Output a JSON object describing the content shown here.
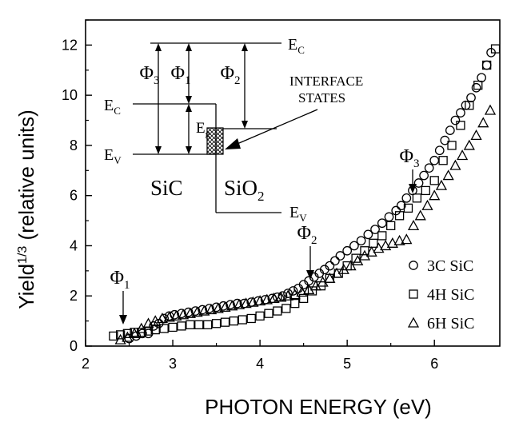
{
  "chart_data": {
    "type": "scatter",
    "xlabel": "PHOTON ENERGY (eV)",
    "ylabel": "Yield",
    "ylabel_sup": "1/3",
    "ylabel_suffix": " (relative units)",
    "xlim": [
      2.0,
      6.75
    ],
    "ylim": [
      0,
      13
    ],
    "xticks": [
      "2",
      "3",
      "4",
      "5",
      "6"
    ],
    "xtick_values": [
      2,
      3,
      4,
      5,
      6
    ],
    "yticks": [
      "0",
      "2",
      "4",
      "6",
      "8",
      "10",
      "12"
    ],
    "ytick_values": [
      0,
      2,
      4,
      6,
      8,
      10,
      12
    ],
    "grid": false,
    "legend_position": "bottom-right",
    "series": [
      {
        "name": "3C SiC",
        "marker": "circle",
        "x": [
          2.5,
          2.58,
          2.65,
          2.72,
          2.78,
          2.84,
          2.9,
          2.96,
          3.02,
          3.1,
          3.18,
          3.26,
          3.34,
          3.42,
          3.5,
          3.58,
          3.66,
          3.74,
          3.82,
          3.9,
          3.98,
          4.06,
          4.14,
          4.2,
          4.26,
          4.32,
          4.38,
          4.44,
          4.5,
          4.56,
          4.62,
          4.68,
          4.74,
          4.8,
          4.86,
          4.92,
          5.0,
          5.08,
          5.16,
          5.24,
          5.32,
          5.4,
          5.48,
          5.56,
          5.62,
          5.68,
          5.75,
          5.82,
          5.88,
          5.94,
          6.0,
          6.06,
          6.12,
          6.18,
          6.24,
          6.3,
          6.36,
          6.42,
          6.48,
          6.54,
          6.6,
          6.65
        ],
        "y": [
          0.3,
          0.4,
          0.5,
          0.5,
          0.8,
          0.9,
          1.1,
          1.2,
          1.25,
          1.3,
          1.35,
          1.4,
          1.45,
          1.5,
          1.55,
          1.6,
          1.65,
          1.7,
          1.7,
          1.75,
          1.8,
          1.85,
          1.9,
          1.95,
          2.0,
          2.1,
          2.2,
          2.3,
          2.45,
          2.6,
          2.75,
          2.9,
          3.05,
          3.2,
          3.4,
          3.6,
          3.8,
          4.0,
          4.2,
          4.45,
          4.65,
          4.9,
          5.15,
          5.4,
          5.6,
          5.9,
          6.2,
          6.5,
          6.8,
          7.1,
          7.4,
          7.8,
          8.2,
          8.6,
          9.0,
          9.3,
          9.6,
          9.9,
          10.3,
          10.7,
          11.2,
          11.7
        ]
      },
      {
        "name": "4H SiC",
        "marker": "square",
        "x": [
          2.32,
          2.4,
          2.48,
          2.56,
          2.64,
          2.72,
          2.8,
          2.9,
          3.0,
          3.1,
          3.2,
          3.3,
          3.4,
          3.5,
          3.6,
          3.7,
          3.8,
          3.9,
          4.0,
          4.1,
          4.2,
          4.3,
          4.4,
          4.5,
          4.6,
          4.7,
          4.8,
          4.9,
          5.0,
          5.1,
          5.2,
          5.3,
          5.4,
          5.5,
          5.6,
          5.7,
          5.8,
          5.9,
          6.0,
          6.1,
          6.2,
          6.3,
          6.4,
          6.5,
          6.6,
          6.7
        ],
        "y": [
          0.4,
          0.45,
          0.5,
          0.55,
          0.55,
          0.6,
          0.65,
          0.7,
          0.75,
          0.8,
          0.85,
          0.85,
          0.85,
          0.9,
          0.95,
          1.0,
          1.05,
          1.1,
          1.2,
          1.3,
          1.4,
          1.5,
          1.7,
          1.9,
          2.2,
          2.4,
          2.7,
          2.9,
          3.2,
          3.5,
          3.8,
          4.1,
          4.4,
          4.8,
          5.2,
          5.5,
          5.9,
          6.2,
          6.6,
          7.4,
          8.0,
          8.8,
          9.6,
          10.4,
          11.2,
          11.85
        ]
      },
      {
        "name": "6H SiC",
        "marker": "triangle",
        "x": [
          2.4,
          2.48,
          2.56,
          2.64,
          2.72,
          2.8,
          2.88,
          2.96,
          3.04,
          3.12,
          3.2,
          3.28,
          3.36,
          3.44,
          3.52,
          3.6,
          3.68,
          3.76,
          3.84,
          3.92,
          4.0,
          4.08,
          4.16,
          4.24,
          4.32,
          4.4,
          4.48,
          4.56,
          4.64,
          4.72,
          4.8,
          4.88,
          4.96,
          5.04,
          5.12,
          5.2,
          5.28,
          5.36,
          5.44,
          5.52,
          5.6,
          5.68,
          5.76,
          5.84,
          5.92,
          6.0,
          6.08,
          6.16,
          6.24,
          6.32,
          6.4,
          6.48,
          6.56,
          6.64
        ],
        "y": [
          0.25,
          0.35,
          0.5,
          0.7,
          0.9,
          1.0,
          1.1,
          1.15,
          1.2,
          1.25,
          1.3,
          1.35,
          1.4,
          1.45,
          1.5,
          1.55,
          1.6,
          1.65,
          1.7,
          1.75,
          1.8,
          1.85,
          1.9,
          1.95,
          2.0,
          2.05,
          2.15,
          2.25,
          2.4,
          2.55,
          2.7,
          2.9,
          3.05,
          3.2,
          3.4,
          3.6,
          3.75,
          3.9,
          4.0,
          4.1,
          4.2,
          4.25,
          4.8,
          5.2,
          5.6,
          6.0,
          6.4,
          6.8,
          7.2,
          7.6,
          8.0,
          8.4,
          8.9,
          9.4
        ]
      }
    ],
    "annotations": {
      "phi1": {
        "label": "Φ",
        "sub": "1",
        "x": 2.5
      },
      "phi2": {
        "label": "Φ",
        "sub": "2",
        "x": 4.55
      },
      "phi3": {
        "label": "Φ",
        "sub": "3",
        "x": 5.68
      }
    },
    "inset": {
      "ec_left": {
        "label": "E",
        "sub": "C"
      },
      "ev_left": {
        "label": "E",
        "sub": "V"
      },
      "ec_right": {
        "label": "E",
        "sub": "C"
      },
      "ev_right": {
        "label": "E",
        "sub": "V"
      },
      "eg": {
        "label": "E",
        "sub": "g"
      },
      "phi1": {
        "label": "Φ",
        "sub": "1"
      },
      "phi2": {
        "label": "Φ",
        "sub": "2"
      },
      "phi3": {
        "label": "Φ",
        "sub": "3"
      },
      "sic": "SiC",
      "sio2": {
        "label": "SiO",
        "sub": "2"
      },
      "interface_line1": "INTERFACE",
      "interface_line2": "STATES"
    }
  }
}
